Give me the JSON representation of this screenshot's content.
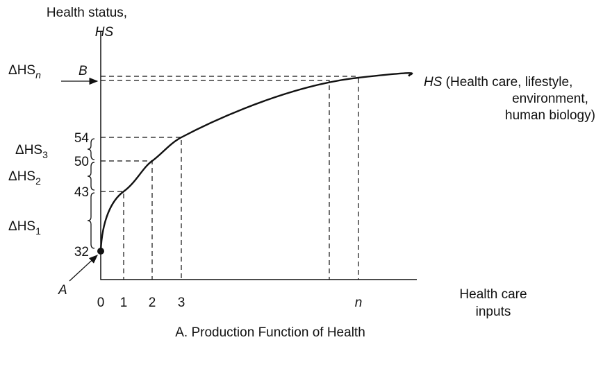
{
  "y_axis": {
    "title": "Health status,",
    "symbol": "HS",
    "ticks": [
      "32",
      "43",
      "50",
      "54"
    ],
    "increments": [
      {
        "main": "ΔHS",
        "sub": "1"
      },
      {
        "main": "ΔHS",
        "sub": "2"
      },
      {
        "main": "ΔHS",
        "sub": "3"
      },
      {
        "main": "ΔHS",
        "sub": "n"
      }
    ]
  },
  "x_axis": {
    "title": [
      "Health care",
      "inputs"
    ],
    "ticks": [
      "0",
      "1",
      "2",
      "3",
      "n"
    ]
  },
  "points": {
    "a": "A",
    "b": "B"
  },
  "curve_label": {
    "symbol": "HS",
    "lines": [
      " (Health care, lifestyle,",
      "environment,",
      "human biology)"
    ]
  },
  "caption": "A. Production Function of Health"
}
